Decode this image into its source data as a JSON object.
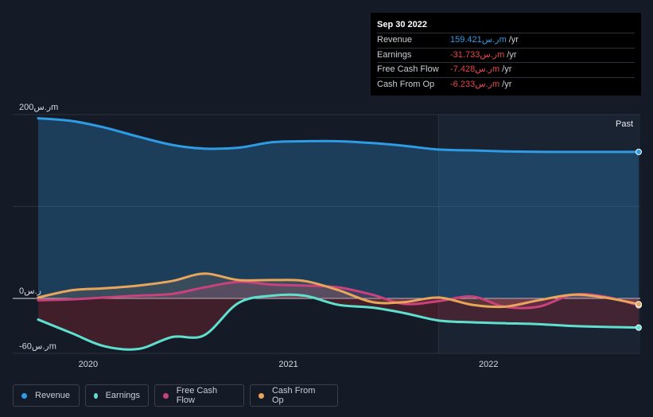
{
  "tooltip": {
    "date": "Sep 30 2022",
    "rows": [
      {
        "label": "Revenue",
        "value": "159.421ر.سm",
        "unit": "/yr",
        "color": "#2f9be5"
      },
      {
        "label": "Earnings",
        "value": "-31.733ر.سm",
        "unit": "/yr",
        "color": "#e8474d"
      },
      {
        "label": "Free Cash Flow",
        "value": "-7.428ر.سm",
        "unit": "/yr",
        "color": "#e8474d"
      },
      {
        "label": "Cash From Op",
        "value": "-6.233ر.سm",
        "unit": "/yr",
        "color": "#e8474d"
      }
    ]
  },
  "past_label": "Past",
  "legend": [
    {
      "label": "Revenue",
      "color": "#2f9be5"
    },
    {
      "label": "Earnings",
      "color": "#5fe0cf"
    },
    {
      "label": "Free Cash Flow",
      "color": "#c8427c"
    },
    {
      "label": "Cash From Op",
      "color": "#e8a65c"
    }
  ],
  "chart_data": {
    "type": "line",
    "xlabel": "",
    "ylabel": "",
    "x": [
      2019.75,
      2019.92,
      2020.08,
      2020.25,
      2020.42,
      2020.58,
      2020.75,
      2020.92,
      2021.08,
      2021.25,
      2021.42,
      2021.58,
      2021.75,
      2021.92,
      2022.08,
      2022.25,
      2022.42,
      2022.58,
      2022.75
    ],
    "xticks": [
      2020,
      2021,
      2022
    ],
    "xtick_labels": [
      "2020",
      "2021",
      "2022"
    ],
    "ylim": [
      -60,
      200
    ],
    "yticks": [
      200,
      0,
      -60
    ],
    "ytick_labels": [
      "200ر.سm",
      "0ر.س",
      "-60ر.سm"
    ],
    "forecast_divider_x": 2021.75,
    "series": [
      {
        "name": "Revenue",
        "color": "#2f9be5",
        "values": [
          196,
          193,
          186,
          176,
          167,
          163,
          164,
          170,
          171,
          171,
          169,
          166,
          162,
          161,
          160,
          159.5,
          159.4,
          159.4,
          159.421
        ]
      },
      {
        "name": "Earnings",
        "color": "#5fe0cf",
        "values": [
          -23,
          -38,
          -52,
          -55,
          -42,
          -40,
          -5,
          3,
          3,
          -7,
          -10,
          -16,
          -24,
          -26,
          -27,
          -28,
          -30,
          -31,
          -31.733
        ]
      },
      {
        "name": "Free Cash Flow",
        "color": "#c8427c",
        "values": [
          -2,
          -1,
          1,
          3,
          5,
          12,
          18,
          15,
          14,
          12,
          4,
          -6,
          -3,
          2,
          -9,
          -9,
          4,
          2,
          -7.428
        ]
      },
      {
        "name": "Cash From Op",
        "color": "#e8a65c",
        "values": [
          1,
          9,
          11,
          14,
          19,
          27,
          20,
          20,
          19,
          9,
          -4,
          -4,
          1,
          -7,
          -9,
          -2,
          4,
          1,
          -6.233
        ]
      }
    ]
  }
}
